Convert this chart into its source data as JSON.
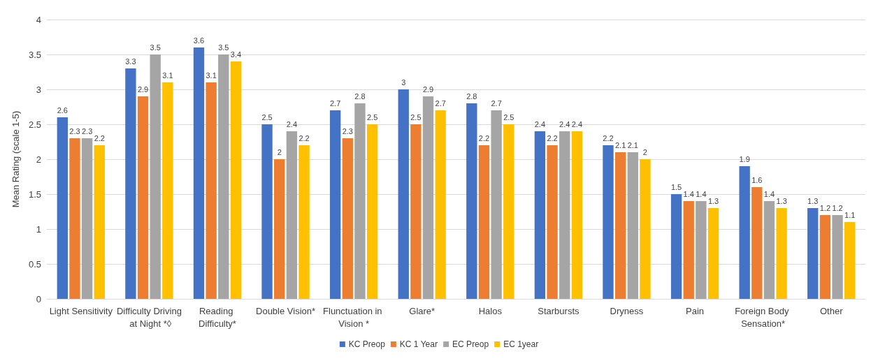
{
  "chart_data": {
    "type": "bar",
    "ylabel": "Mean Rating (scale 1-5)",
    "categories": [
      "Light Sensitivity",
      "Difficulty Driving at Night *◊",
      "Reading Difficulty*",
      "Double Vision*",
      "Flunctuation in Vision *",
      "Glare*",
      "Halos",
      "Starbursts",
      "Dryness",
      "Pain",
      "Foreign Body Sensation*",
      "Other"
    ],
    "series": [
      {
        "name": "KC Preop",
        "color": "#4472c4",
        "values": [
          2.6,
          3.3,
          3.6,
          2.5,
          2.7,
          3,
          2.8,
          2.4,
          2.2,
          1.5,
          1.9,
          1.3
        ]
      },
      {
        "name": "KC 1 Year",
        "color": "#ed7d31",
        "values": [
          2.3,
          2.9,
          3.1,
          2,
          2.3,
          2.5,
          2.2,
          2.2,
          2.1,
          1.4,
          1.6,
          1.2
        ]
      },
      {
        "name": "EC Preop",
        "color": "#a5a5a5",
        "values": [
          2.3,
          3.5,
          3.5,
          2.4,
          2.8,
          2.9,
          2.7,
          2.4,
          2.1,
          1.4,
          1.4,
          1.2
        ]
      },
      {
        "name": "EC 1year",
        "color": "#ffc000",
        "values": [
          2.2,
          3.1,
          3.4,
          2.2,
          2.5,
          2.7,
          2.5,
          2.4,
          2,
          1.3,
          1.3,
          1.1
        ]
      }
    ],
    "ylim": [
      0,
      4
    ],
    "yticks": [
      0,
      0.5,
      1,
      1.5,
      2,
      2.5,
      3,
      3.5,
      4
    ],
    "grid": "y",
    "legend": "bottom",
    "data_labels": true
  }
}
